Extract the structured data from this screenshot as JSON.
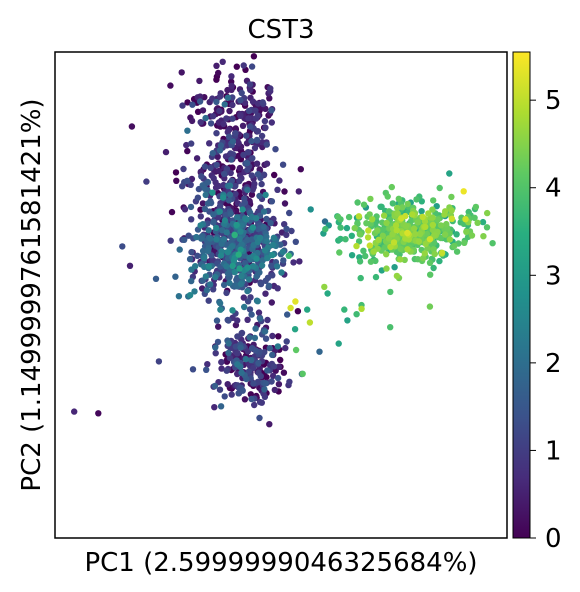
{
  "chart_data": {
    "type": "scatter",
    "title": "CST3",
    "xlabel": "PC1 (2.5999999046325684%)",
    "ylabel": "PC2 (1.1499999761581421%)",
    "xticks": [],
    "yticks": [],
    "xlim": [
      -5,
      42
    ],
    "ylim": [
      -9,
      21
    ],
    "colormap": "viridis",
    "colorbar": {
      "vmin": 0,
      "vmax": 5.55,
      "ticks": [
        0,
        1,
        2,
        3,
        4,
        5
      ],
      "tick_labels": [
        "0",
        "1",
        "2",
        "3",
        "4",
        "5"
      ]
    },
    "grid": false,
    "legend": "none",
    "clusters": [
      {
        "cx": 14.0,
        "cy": 8.8,
        "sx": 2.6,
        "sy": 1.6,
        "n": 520,
        "vmean": 1.4,
        "vsd": 0.7
      },
      {
        "cx": 13.5,
        "cy": 12.8,
        "sx": 2.4,
        "sy": 2.2,
        "n": 300,
        "vmean": 0.6,
        "vsd": 0.6
      },
      {
        "cx": 13.8,
        "cy": 17.2,
        "sx": 2.0,
        "sy": 1.5,
        "n": 150,
        "vmean": 0.4,
        "vsd": 0.5
      },
      {
        "cx": 15.0,
        "cy": 1.9,
        "sx": 1.8,
        "sy": 1.4,
        "n": 240,
        "vmean": 0.7,
        "vsd": 0.7
      },
      {
        "cx": 32.0,
        "cy": 9.9,
        "sx": 3.0,
        "sy": 0.9,
        "n": 460,
        "vmean": 4.1,
        "vsd": 0.4
      },
      {
        "cx": 26.5,
        "cy": 7.0,
        "sx": 3.5,
        "sy": 2.5,
        "n": 30,
        "vmean": 3.8,
        "vsd": 0.6
      }
    ],
    "outliers": [
      {
        "x": -3.0,
        "y": -1.2,
        "v": 0.6
      },
      {
        "x": -0.5,
        "y": -1.3,
        "v": 0.1
      },
      {
        "x": 2.0,
        "y": 9.0,
        "v": 1.3
      },
      {
        "x": 3.0,
        "y": 16.4,
        "v": 0.2
      },
      {
        "x": 4.5,
        "y": 13.0,
        "v": 1.0
      },
      {
        "x": 5.5,
        "y": 7.0,
        "v": 1.6
      },
      {
        "x": 5.8,
        "y": 1.9,
        "v": 1.1
      },
      {
        "x": 2.8,
        "y": 7.8,
        "v": 0.5
      },
      {
        "x": 19.5,
        "y": 5.2,
        "v": 5.2
      },
      {
        "x": 20.0,
        "y": 5.6,
        "v": 5.3
      },
      {
        "x": 21.5,
        "y": 4.3,
        "v": 5.0
      },
      {
        "x": 23.0,
        "y": 6.5,
        "v": 4.6
      },
      {
        "x": 22.5,
        "y": 2.5,
        "v": 1.8
      },
      {
        "x": 24.5,
        "y": 3.0,
        "v": 3.2
      },
      {
        "x": 37.5,
        "y": 12.4,
        "v": 5.4
      },
      {
        "x": 36.0,
        "y": 13.5,
        "v": 3.2
      },
      {
        "x": 39.5,
        "y": 10.5,
        "v": 3.5
      },
      {
        "x": 40.5,
        "y": 9.2,
        "v": 4.0
      },
      {
        "x": 17.5,
        "y": 17.4,
        "v": 1.5
      },
      {
        "x": 15.5,
        "y": 20.1,
        "v": 1.2
      }
    ]
  }
}
